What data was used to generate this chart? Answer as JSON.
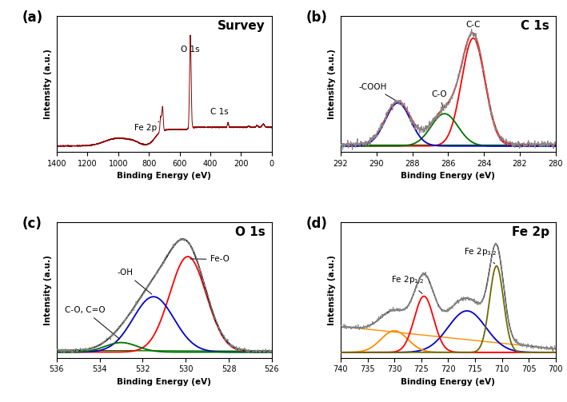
{
  "panel_labels": [
    "(a)",
    "(b)",
    "(c)",
    "(d)"
  ],
  "panel_titles": [
    "Survey",
    "C 1s",
    "O 1s",
    "Fe 2p"
  ],
  "survey_color": "#8B0000",
  "survey_xlim": [
    1400,
    0
  ],
  "xlabel": "Binding Energy (eV)",
  "ylabel": "Intensity (a.u.)",
  "c1s_xlim": [
    292,
    280
  ],
  "o1s_xlim": [
    536,
    526
  ],
  "fe2p_xlim": [
    740,
    700
  ],
  "red_color": "#FF0000",
  "blue_color": "#0000CD",
  "green_color": "#007000",
  "olive_color": "#6B6B00",
  "orange_color": "#FF8C00",
  "dark_color": "#333333",
  "gray_color": "#888888"
}
